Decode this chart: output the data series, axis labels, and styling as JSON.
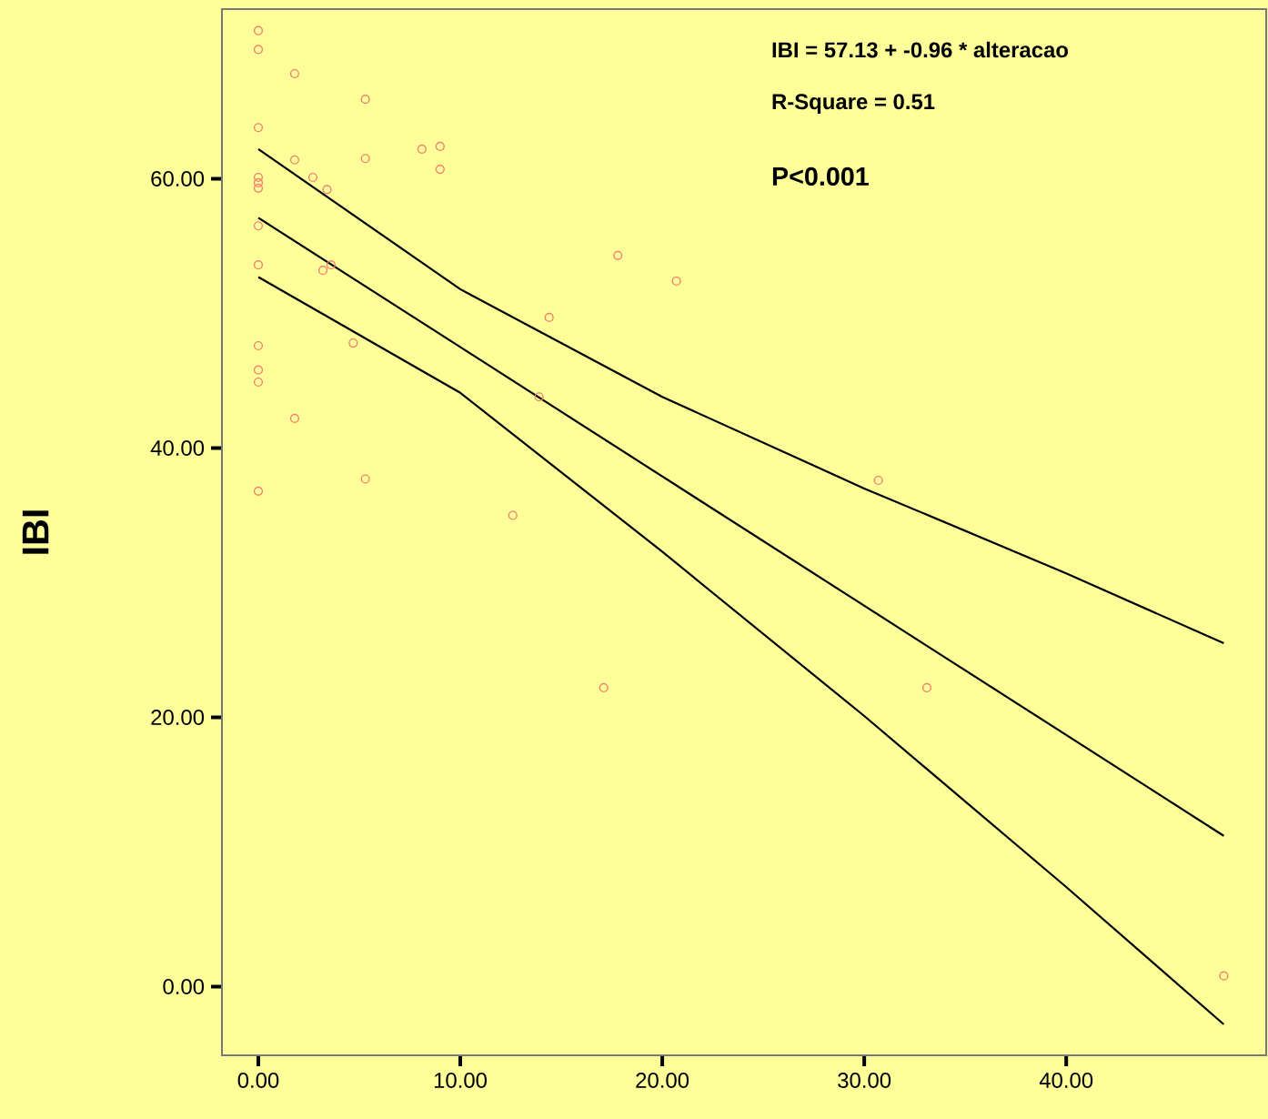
{
  "chart_data": {
    "type": "scatter",
    "ylabel": "IBI",
    "annotations": [
      "IBI = 57.13 + -0.96 * alteracao",
      "R-Square = 0.51",
      "P<0.001"
    ],
    "xlim": [
      -1.8,
      49.9
    ],
    "ylim": [
      -5.1,
      72.6
    ],
    "xticks": [
      {
        "value": 0,
        "label": "0.00"
      },
      {
        "value": 10,
        "label": "10.00"
      },
      {
        "value": 20,
        "label": "20.00"
      },
      {
        "value": 30,
        "label": "30.00"
      },
      {
        "value": 40,
        "label": "40.00"
      }
    ],
    "yticks": [
      {
        "value": 0,
        "label": "0.00"
      },
      {
        "value": 20,
        "label": "20.00"
      },
      {
        "value": 40,
        "label": "40.00"
      },
      {
        "value": 60,
        "label": "60.00"
      }
    ],
    "marker": "circle",
    "series": [
      {
        "color": "#f08070",
        "x": [
          0,
          0,
          0,
          0,
          0,
          0,
          0,
          0,
          0,
          0,
          0,
          0,
          1.8,
          1.8,
          1.8,
          2.7,
          3.4,
          5.3,
          5.3,
          5.3,
          3.2,
          3.6,
          4.7,
          8.1,
          9.0,
          9.0,
          12.6,
          13.9,
          14.4,
          17.8,
          20.7,
          17.1,
          30.7,
          33.1,
          47.8
        ],
        "values": [
          71,
          69.6,
          63.8,
          60.1,
          59.7,
          56.5,
          53.6,
          47.6,
          45.8,
          44.9,
          36.8,
          59.3,
          67.8,
          61.4,
          42.2,
          60.1,
          59.2,
          65.9,
          61.5,
          37.7,
          53.2,
          53.6,
          47.8,
          62.2,
          62.4,
          60.7,
          35.0,
          43.8,
          49.7,
          54.3,
          52.4,
          22.2,
          37.6,
          22.2,
          0.8
        ]
      },
      {
        "type": "line",
        "marker": "none",
        "color": "#000000",
        "x": [
          0,
          47.8
        ],
        "values": [
          57.1,
          11.2
        ]
      },
      {
        "type": "line",
        "marker": "none",
        "color": "#000000",
        "x": [
          0,
          10,
          20,
          30,
          40,
          47.8
        ],
        "values": [
          62.2,
          51.8,
          43.8,
          37.0,
          30.7,
          25.5
        ]
      },
      {
        "type": "line",
        "marker": "none",
        "color": "#000000",
        "x": [
          0,
          10,
          20,
          30,
          40,
          47.8
        ],
        "values": [
          52.7,
          44.1,
          32.3,
          20.1,
          7.4,
          -2.8
        ]
      }
    ]
  }
}
